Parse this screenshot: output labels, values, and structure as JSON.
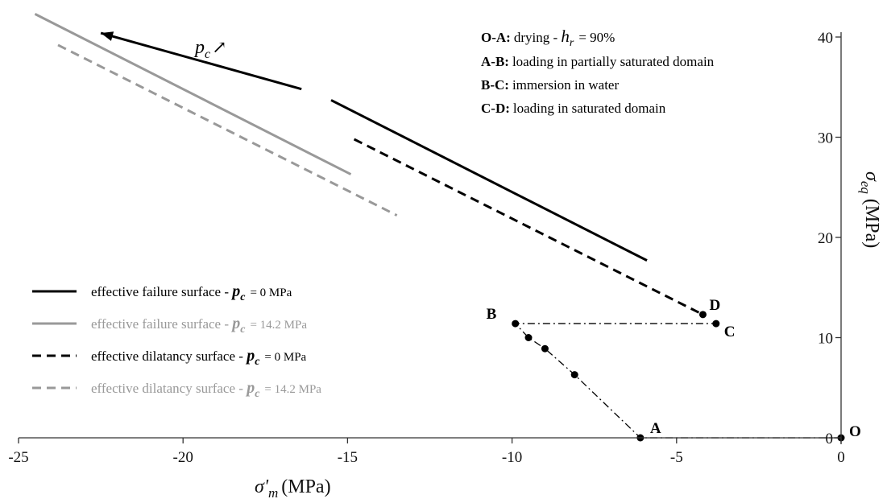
{
  "chart_data": {
    "type": "line",
    "title": "",
    "xlabel": {
      "symbol": "σ'",
      "sub": "m",
      "unit": "(MPa)"
    },
    "ylabel": {
      "symbol": "σ",
      "sub": "eq",
      "unit": "(MPa)"
    },
    "xlim": [
      -25,
      0
    ],
    "ylim": [
      0,
      40
    ],
    "xticks": [
      -25,
      -20,
      -15,
      -10,
      -5,
      0
    ],
    "yticks": [
      0,
      10,
      20,
      30,
      40
    ],
    "grid": false,
    "legend_position": "left",
    "series": [
      {
        "name": "effective failure surface - ",
        "pc": "p",
        "pc_sub": "c",
        "pc_value": "= 0 MPa",
        "color": "#000000",
        "dash": "solid",
        "segments": [
          [
            [
              -16.4,
              34.8
            ],
            [
              -22.5,
              40.4
            ]
          ],
          [
            [
              -15.5,
              33.7
            ],
            [
              -5.9,
              17.7
            ]
          ]
        ]
      },
      {
        "name": "effective failure surface - ",
        "pc": "p",
        "pc_sub": "c",
        "pc_value": "= 14.2 MPa",
        "color": "#999999",
        "dash": "solid",
        "segments": [
          [
            [
              -24.5,
              42.3
            ],
            [
              -14.9,
              26.3
            ]
          ]
        ]
      },
      {
        "name": "effective dilatancy surface - ",
        "pc": "p",
        "pc_sub": "c",
        "pc_value": "= 0 MPa",
        "color": "#000000",
        "dash": "dashed",
        "segments": [
          [
            [
              -14.8,
              29.8
            ],
            [
              -4.2,
              12.3
            ]
          ]
        ]
      },
      {
        "name": "effective dilatancy surface - ",
        "pc": "p",
        "pc_sub": "c",
        "pc_value": "= 14.2 MPa",
        "color": "#999999",
        "dash": "dashed",
        "segments": [
          [
            [
              -23.8,
              39.2
            ],
            [
              -13.5,
              22.2
            ]
          ]
        ]
      }
    ],
    "loading_path": {
      "points": [
        {
          "label": "O",
          "x": 0,
          "y": 0
        },
        {
          "label": "A",
          "x": -6.1,
          "y": 0
        },
        {
          "label": "",
          "x": -8.1,
          "y": 6.3
        },
        {
          "label": "",
          "x": -9.0,
          "y": 8.9
        },
        {
          "label": "",
          "x": -9.5,
          "y": 10.0
        },
        {
          "label": "B",
          "x": -9.9,
          "y": 11.4
        },
        {
          "label": "C",
          "x": -3.8,
          "y": 11.4
        },
        {
          "label": "D",
          "x": -4.2,
          "y": 12.3
        }
      ],
      "path": [
        [
          0,
          0
        ],
        [
          -6.1,
          0
        ],
        [
          -8.1,
          6.3
        ],
        [
          -9.0,
          8.9
        ],
        [
          -9.5,
          10.0
        ],
        [
          -9.9,
          11.4
        ],
        [
          -3.8,
          11.4
        ]
      ]
    },
    "annotations": {
      "pc_arrow": {
        "symbol": "p",
        "sub": "c",
        "arrow": "↗"
      },
      "steps": [
        {
          "code": "O-A:",
          "text": "drying - ",
          "math": "h",
          "math_sub": "r",
          "after": "= 90%"
        },
        {
          "code": "A-B:",
          "text": "loading in partially saturated domain"
        },
        {
          "code": "B-C:",
          "text": "immersion in water"
        },
        {
          "code": "C-D:",
          "text": "loading in saturated domain"
        }
      ]
    }
  }
}
